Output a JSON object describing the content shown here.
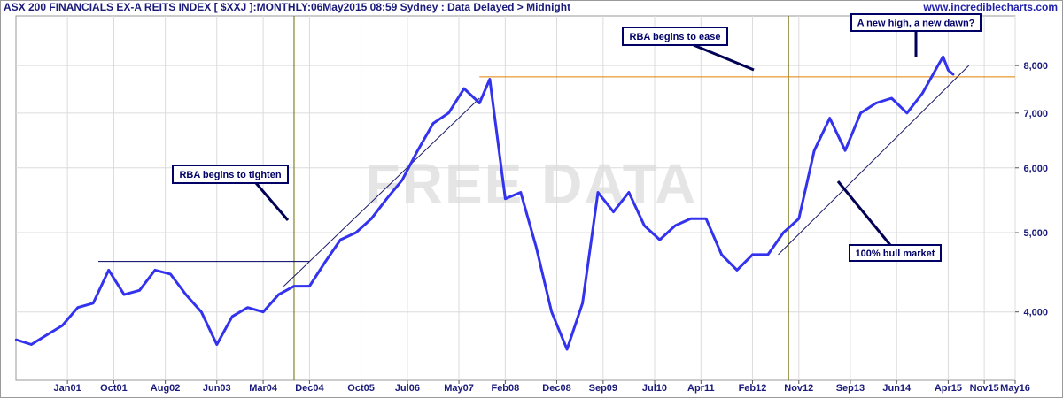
{
  "header": {
    "title": "ASX 200 FINANCIALS EX-A REITS INDEX [ $XXJ ]:MONTHLY:06May2015 08:59 Sydney : Data Delayed > Midnight",
    "site": "www.incrediblecharts.com"
  },
  "watermark": "FREE DATA",
  "chart_data": {
    "type": "line",
    "title": "ASX 200 FINANCIALS EX-A REITS INDEX [ $XXJ ]:MONTHLY",
    "y_scale": "log",
    "ylim": [
      3300,
      9200
    ],
    "xlim": [
      "2000-03",
      "2016-05"
    ],
    "grid": true,
    "x_tick_labels": [
      "Jan01",
      "Oct01",
      "Aug02",
      "Jun03",
      "Mar04",
      "Dec04",
      "Oct05",
      "Jul06",
      "May07",
      "Feb08",
      "Dec08",
      "Sep09",
      "Jul10",
      "Apr11",
      "Feb12",
      "Nov12",
      "Sep13",
      "Jun14",
      "Apr15",
      "Nov15",
      "May16"
    ],
    "x_tick_dates": [
      "2001-01",
      "2001-10",
      "2002-08",
      "2003-06",
      "2004-03",
      "2004-12",
      "2005-10",
      "2006-07",
      "2007-05",
      "2008-02",
      "2008-12",
      "2009-09",
      "2010-07",
      "2011-04",
      "2012-02",
      "2012-11",
      "2013-09",
      "2014-06",
      "2015-04",
      "2015-11",
      "2016-05"
    ],
    "y_ticks": [
      4000,
      5000,
      6000,
      7000,
      8000
    ],
    "y_tick_labels": [
      "4,000",
      "5,000",
      "6,000",
      "7,000",
      "8,000"
    ],
    "series": [
      {
        "color": "#3333ee",
        "x": [
          "2000-03",
          "2000-06",
          "2000-09",
          "2000-12",
          "2001-03",
          "2001-06",
          "2001-09",
          "2001-12",
          "2002-03",
          "2002-06",
          "2002-09",
          "2002-12",
          "2003-03",
          "2003-06",
          "2003-09",
          "2003-12",
          "2004-03",
          "2004-06",
          "2004-09",
          "2004-12",
          "2005-03",
          "2005-06",
          "2005-09",
          "2005-12",
          "2006-03",
          "2006-06",
          "2006-09",
          "2006-12",
          "2007-03",
          "2007-06",
          "2007-09",
          "2007-11",
          "2008-02",
          "2008-05",
          "2008-08",
          "2008-11",
          "2009-02",
          "2009-05",
          "2009-08",
          "2009-11",
          "2010-02",
          "2010-05",
          "2010-08",
          "2010-11",
          "2011-02",
          "2011-05",
          "2011-08",
          "2011-11",
          "2012-02",
          "2012-05",
          "2012-08",
          "2012-11",
          "2013-02",
          "2013-05",
          "2013-08",
          "2013-11",
          "2014-02",
          "2014-05",
          "2014-08",
          "2014-11",
          "2015-02",
          "2015-03",
          "2015-04",
          "2015-05"
        ],
        "values": [
          3700,
          3650,
          3750,
          3850,
          4050,
          4100,
          4500,
          4200,
          4250,
          4500,
          4450,
          4200,
          4000,
          3650,
          3950,
          4050,
          4000,
          4200,
          4300,
          4300,
          4600,
          4900,
          5000,
          5200,
          5500,
          5800,
          6300,
          6800,
          7000,
          7500,
          7200,
          7700,
          5500,
          5600,
          4800,
          4000,
          3600,
          4100,
          5600,
          5300,
          5600,
          5100,
          4900,
          5100,
          5200,
          5200,
          4700,
          4500,
          4700,
          4700,
          5000,
          5200,
          6300,
          6900,
          6300,
          7000,
          7200,
          7300,
          7000,
          7400,
          8000,
          8200,
          7900,
          7800
        ]
      }
    ],
    "trendlines": [
      {
        "x": [
          "2004-07",
          "2007-09"
        ],
        "values": [
          4300,
          7300
        ],
        "color": "#1a1a6a"
      },
      {
        "x": [
          "2012-07",
          "2015-08"
        ],
        "values": [
          4700,
          8000
        ],
        "color": "#1a1a6a"
      }
    ],
    "hlines": [
      {
        "value": 4610,
        "x": [
          "2001-07",
          "2004-12"
        ],
        "color": "#000066"
      },
      {
        "value": 7750,
        "x": [
          "2007-09",
          "2016-05"
        ],
        "color": "#e08000"
      }
    ],
    "vlines": [
      {
        "x": "2004-09",
        "color": "#6b6b00"
      },
      {
        "x": "2012-09",
        "color": "#6b6b00"
      }
    ],
    "annotations": [
      {
        "id": "rba-tighten",
        "text": "RBA begins to tighten"
      },
      {
        "id": "rba-ease",
        "text": "RBA begins to ease"
      },
      {
        "id": "new-high",
        "text": "A new high, a new dawn?"
      },
      {
        "id": "bull-market",
        "text": "100% bull market"
      }
    ]
  }
}
